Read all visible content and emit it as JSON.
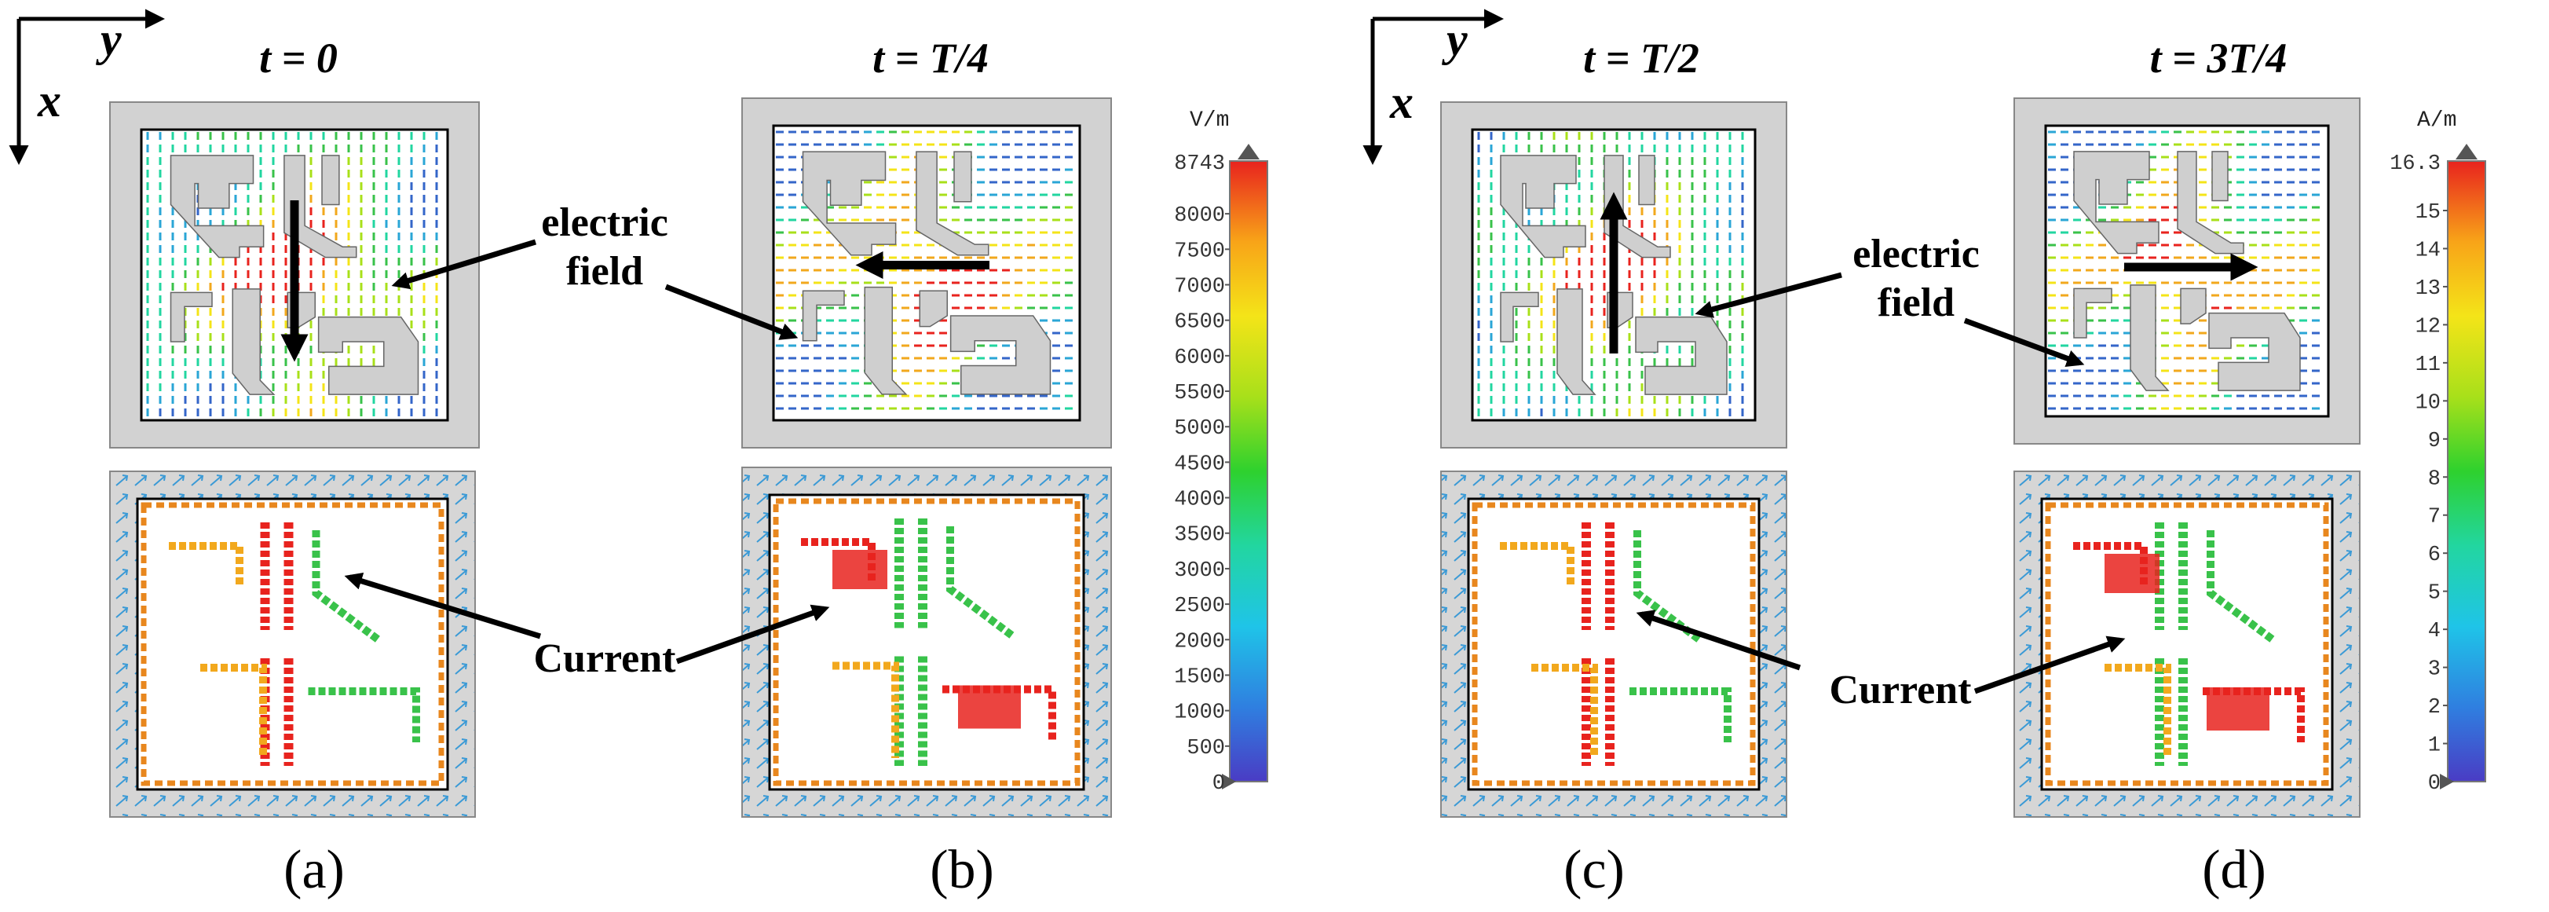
{
  "axes": {
    "x_label": "x",
    "y_label": "y"
  },
  "panels": [
    {
      "id": "a",
      "time_label": "t = 0",
      "sublabel": "(a)",
      "field_arrow": "down",
      "current_hot": [
        "c1",
        "c2",
        "c3",
        "c4"
      ]
    },
    {
      "id": "b",
      "time_label": "t = T/4",
      "sublabel": "(b)",
      "field_arrow": "left",
      "current_hot": [
        "tl",
        "br"
      ]
    },
    {
      "id": "c",
      "time_label": "t = T/2",
      "sublabel": "(c)",
      "field_arrow": "up",
      "current_hot": [
        "c1",
        "c2",
        "c3",
        "c4"
      ]
    },
    {
      "id": "d",
      "time_label": "t = 3T/4",
      "sublabel": "(d)",
      "field_arrow": "right",
      "current_hot": [
        "tl",
        "br"
      ]
    }
  ],
  "annotations": {
    "electric_field": [
      "electric",
      "field"
    ],
    "current": "Current"
  },
  "colorbars": [
    {
      "name": "electric-field",
      "unit": "V/m",
      "max_label": "8743",
      "ticks": [
        "8000",
        "7500",
        "7000",
        "6500",
        "6000",
        "5500",
        "5000",
        "4500",
        "4000",
        "3500",
        "3000",
        "2500",
        "2000",
        "1500",
        "1000",
        "500",
        "0"
      ],
      "min": 0,
      "max": 8743,
      "tick_values": [
        8000,
        7500,
        7000,
        6500,
        6000,
        5500,
        5000,
        4500,
        4000,
        3500,
        3000,
        2500,
        2000,
        1500,
        1000,
        500,
        0
      ]
    },
    {
      "name": "current-density",
      "unit": "A/m",
      "max_label": "16.3",
      "ticks": [
        "15",
        "14",
        "13",
        "12",
        "11",
        "10",
        "9",
        "8",
        "7",
        "6",
        "5",
        "4",
        "3",
        "2",
        "1",
        "0"
      ],
      "min": 0,
      "max": 16.3,
      "tick_values": [
        15,
        14,
        13,
        12,
        11,
        10,
        9,
        8,
        7,
        6,
        5,
        4,
        3,
        2,
        1,
        0
      ]
    }
  ],
  "colors": {
    "substrate": "#d2d2d2",
    "metal": "#cfcfcf",
    "hot": "#e8231e",
    "warm": "#f2a81d",
    "mid": "#39c24a",
    "cool": "#2aa6d6",
    "cold": "#3466c9"
  }
}
